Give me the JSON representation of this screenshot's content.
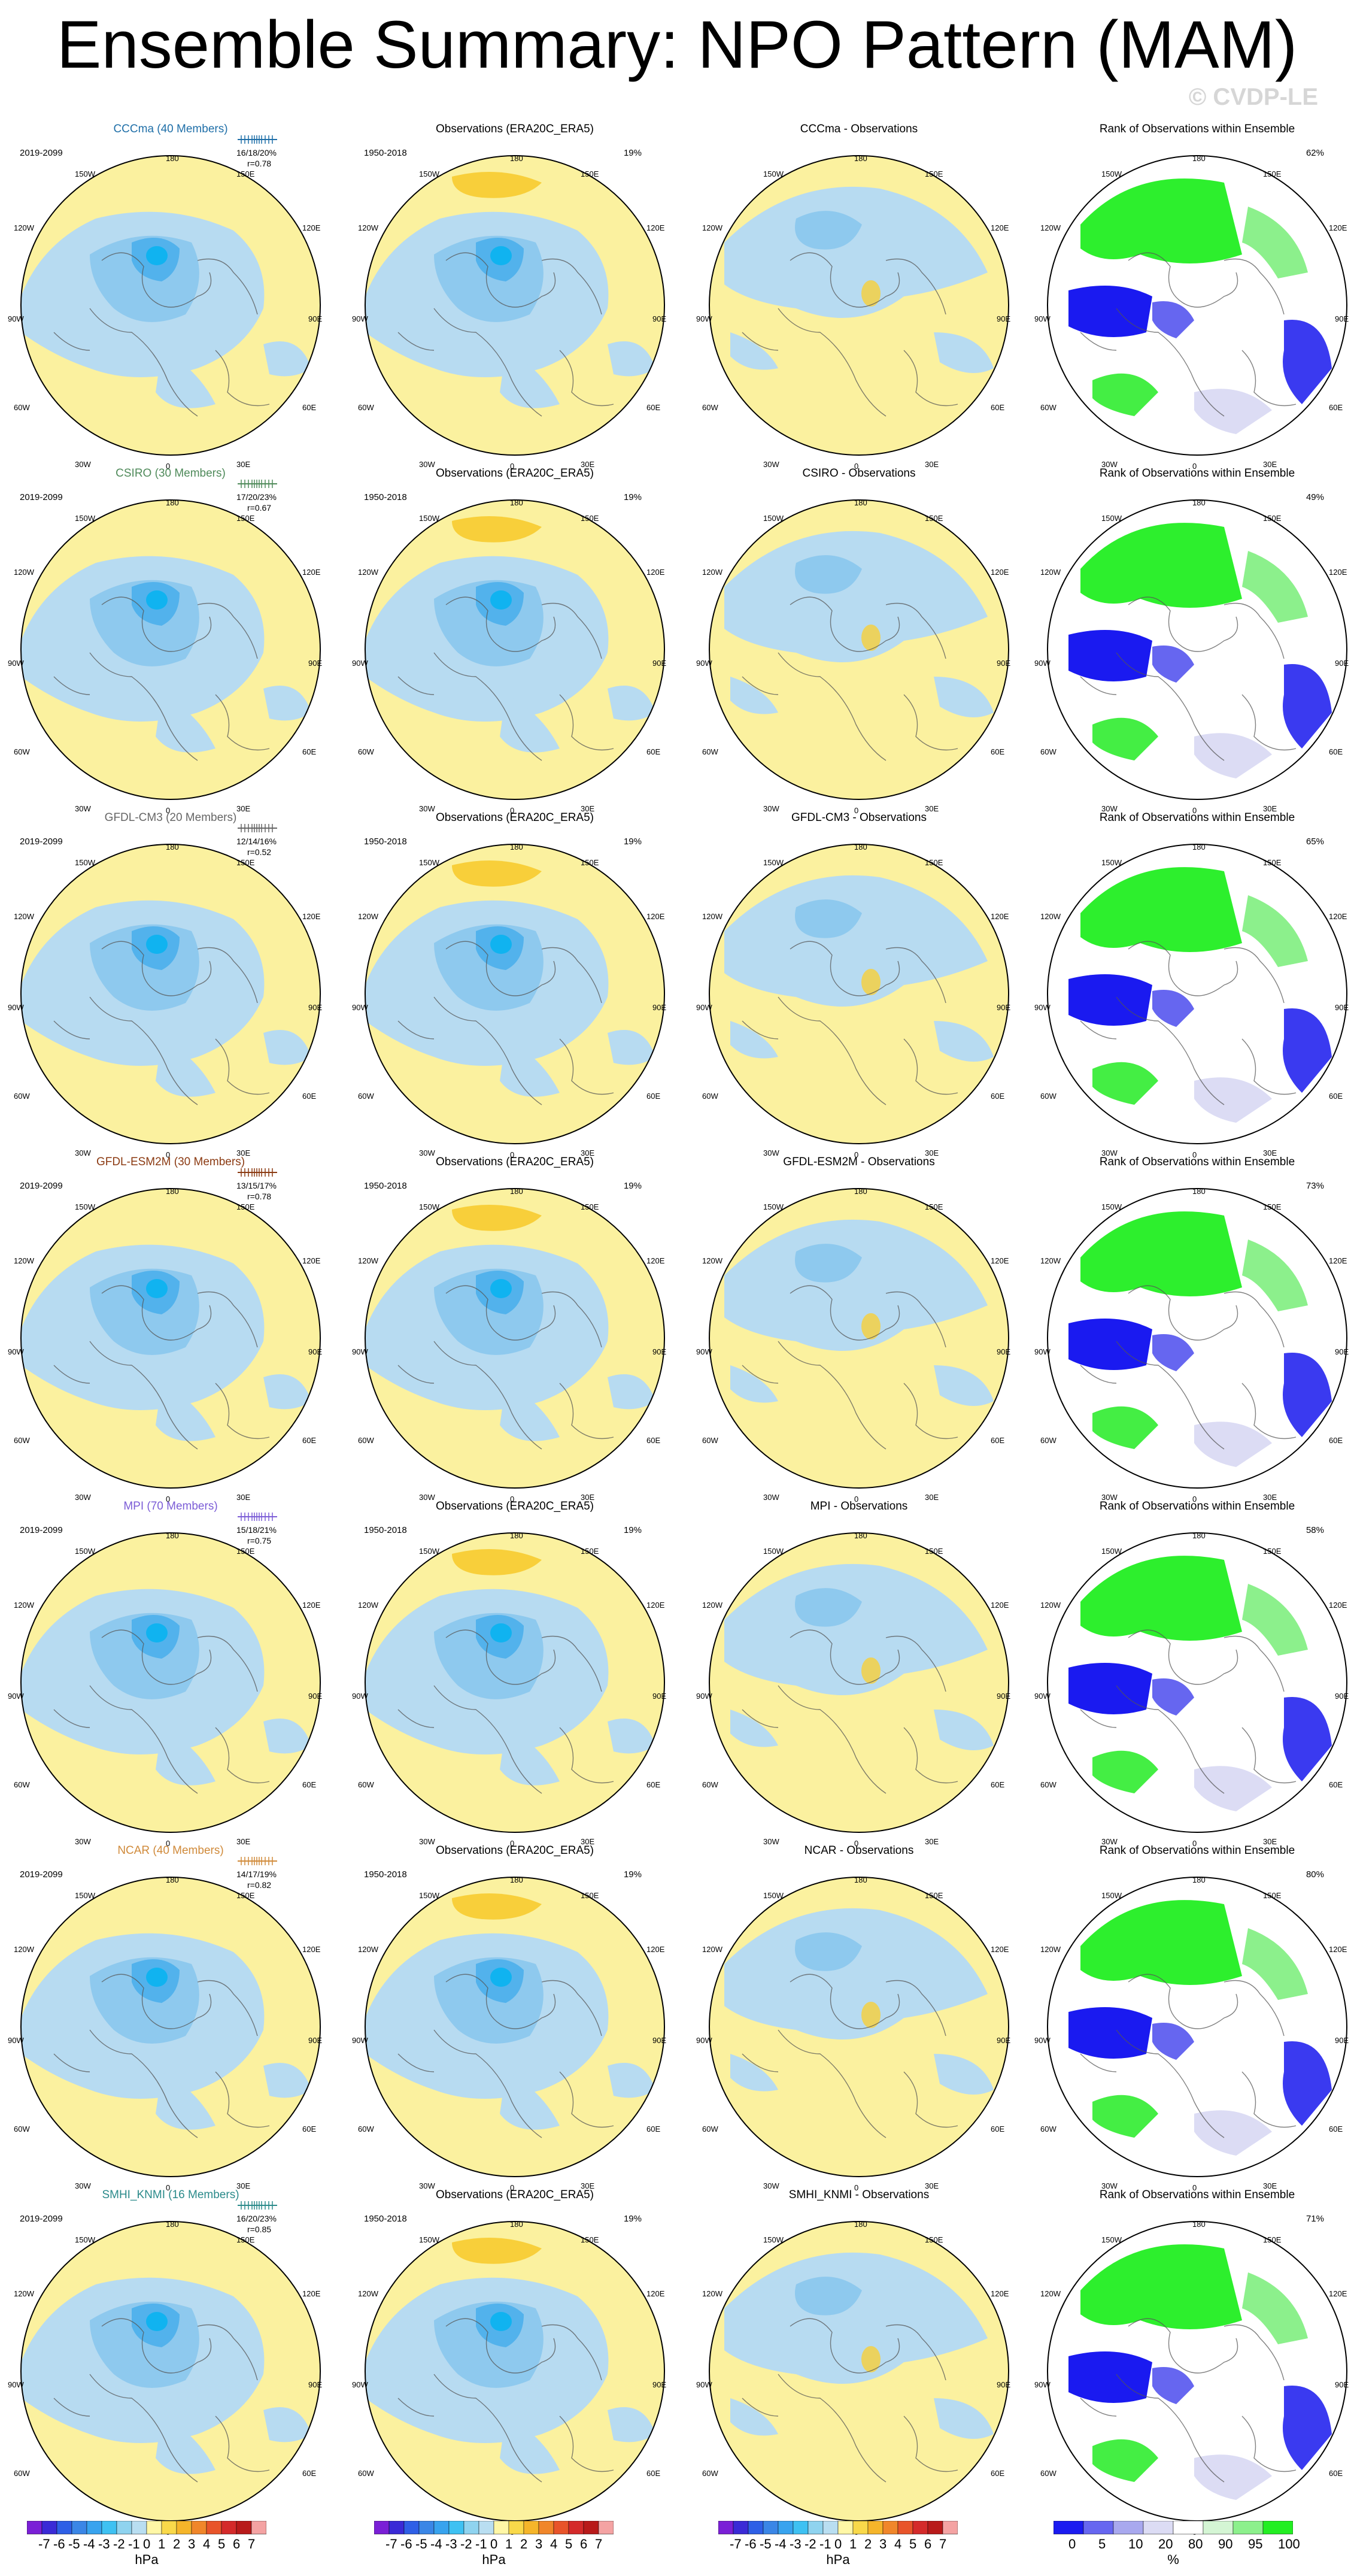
{
  "title": "Ensemble Summary: NPO Pattern (MAM)",
  "watermark": "© CVDP-LE",
  "obs_title": "Observations (ERA20C_ERA5)",
  "obs_period": "1950-2018",
  "obs_pct": "19%",
  "rank_title": "Rank of Observations within Ensemble",
  "model_period": "2019-2099",
  "rows": [
    {
      "model": "CCCma (40 Members)",
      "color": "#1f6fa8",
      "stats": "16/18/20%",
      "r": "r=0.78",
      "diff": "CCCma - Observations",
      "rank_pct": "62%"
    },
    {
      "model": "CSIRO (30 Members)",
      "color": "#4f8a5a",
      "stats": "17/20/23%",
      "r": "r=0.67",
      "diff": "CSIRO - Observations",
      "rank_pct": "49%"
    },
    {
      "model": "GFDL-CM3 (20 Members)",
      "color": "#666666",
      "stats": "12/14/16%",
      "r": "r=0.52",
      "diff": "GFDL-CM3 - Observations",
      "rank_pct": "65%"
    },
    {
      "model": "GFDL-ESM2M (30 Members)",
      "color": "#8b3a12",
      "stats": "13/15/17%",
      "r": "r=0.78",
      "diff": "GFDL-ESM2M - Observations",
      "rank_pct": "73%"
    },
    {
      "model": "MPI (70 Members)",
      "color": "#7b5cd6",
      "stats": "15/18/21%",
      "r": "r=0.75",
      "diff": "MPI - Observations",
      "rank_pct": "58%"
    },
    {
      "model": "NCAR (40 Members)",
      "color": "#d08a3a",
      "stats": "14/17/19%",
      "r": "r=0.82",
      "diff": "NCAR - Observations",
      "rank_pct": "80%"
    },
    {
      "model": "SMHI_KNMI (16 Members)",
      "color": "#2a8a8a",
      "stats": "16/20/23%",
      "r": "r=0.85",
      "diff": "SMHI_KNMI - Observations",
      "rank_pct": "71%"
    }
  ],
  "map_labels": {
    "top": "180",
    "bottom": "0",
    "l1": "150W",
    "r1": "150E",
    "l2": "120W",
    "r2": "120E",
    "l3": "90W",
    "r3": "90E",
    "l4": "60W",
    "r4": "60E",
    "l5": "30W",
    "r5": "30E"
  },
  "colorbar": {
    "unit": "hPa",
    "ticks": [
      "-7",
      "-6",
      "-5",
      "-4",
      "-3",
      "-2",
      "-1",
      "0",
      "1",
      "2",
      "3",
      "4",
      "5",
      "6",
      "7"
    ],
    "colors": [
      "#7a1fd6",
      "#3a2ad6",
      "#2e5fe6",
      "#3a86e6",
      "#38a3ee",
      "#3ec1f2",
      "#8fd3ef",
      "#b9def1",
      "#fff7a6",
      "#f9d94a",
      "#f5b52a",
      "#f0862a",
      "#e8542a",
      "#d42a2a",
      "#b81a1a",
      "#f4a3a3"
    ]
  },
  "rank_colorbar": {
    "unit": "%",
    "ticks": [
      "0",
      "5",
      "10",
      "20",
      "80",
      "90",
      "95",
      "100"
    ],
    "colors": [
      "#1a1af0",
      "#6666f0",
      "#a8a8ee",
      "#dcdcf4",
      "#ffffff",
      "#d4f5d4",
      "#8cf08c",
      "#22ee22"
    ]
  }
}
